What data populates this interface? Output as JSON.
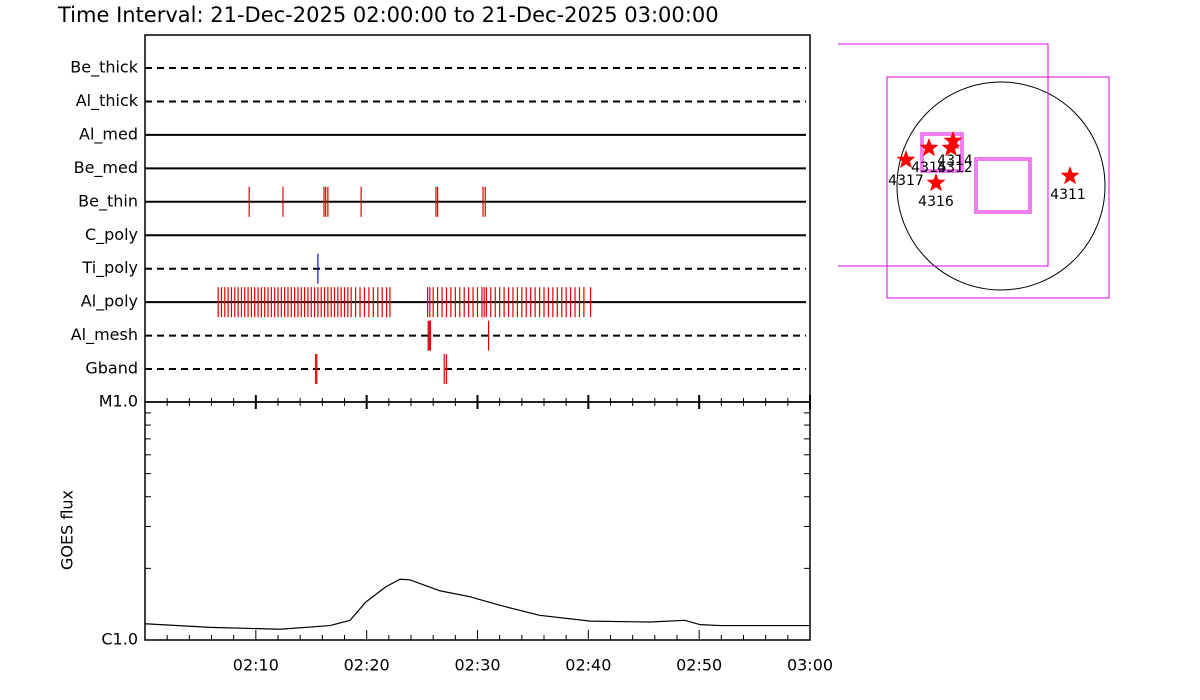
{
  "chart_data": [
    {
      "type": "timeline",
      "title": "Time Interval: 21-Dec-2025 02:00:00 to 21-Dec-2025 03:00:00",
      "categories": [
        "Be_thick",
        "Al_thick",
        "Al_med",
        "Be_med",
        "Be_thin",
        "C_poly",
        "Ti_poly",
        "Al_poly",
        "Al_mesh",
        "Gband"
      ],
      "line_styles": [
        "dashed",
        "dashed",
        "solid",
        "solid",
        "solid",
        "solid",
        "dashed",
        "solid",
        "dashed",
        "dashed"
      ],
      "event_colors": [
        "#e00000",
        "#e00000",
        "#e00000",
        "#e00000",
        "#e00000",
        "#e00000",
        "#1010c0",
        "#e00000",
        "#e00000",
        "#e00000"
      ],
      "events": [
        [],
        [],
        [],
        [],
        [
          9.4,
          12.45,
          16.15,
          16.3,
          16.5,
          19.5,
          26.25,
          26.4,
          30.5,
          30.7
        ],
        [],
        [
          15.6
        ],
        [
          6.6,
          6.9,
          7.2,
          7.5,
          7.8,
          8.1,
          8.4,
          8.7,
          9.0,
          9.3,
          9.6,
          9.9,
          10.2,
          10.5,
          10.8,
          11.1,
          11.4,
          11.7,
          12.0,
          12.3,
          12.6,
          12.9,
          13.2,
          13.5,
          13.8,
          14.1,
          14.4,
          14.7,
          15.0,
          15.3,
          15.6,
          15.9,
          16.2,
          16.5,
          16.8,
          17.1,
          17.4,
          17.7,
          18.0,
          18.3,
          18.6,
          19.0,
          19.4,
          19.8,
          20.2,
          20.6,
          21.0,
          21.4,
          21.8,
          22.1,
          25.5,
          25.7,
          26.0,
          26.4,
          26.8,
          27.2,
          27.6,
          28.0,
          28.4,
          28.8,
          29.2,
          29.6,
          30.0,
          30.4,
          30.6,
          30.8,
          31.2,
          31.6,
          32.0,
          32.4,
          32.8,
          33.2,
          33.6,
          34.0,
          34.4,
          34.8,
          35.2,
          35.6,
          36.0,
          36.4,
          36.8,
          37.2,
          37.6,
          38.0,
          38.4,
          38.8,
          39.2,
          39.6,
          40.2
        ],
        [
          25.55,
          25.65,
          25.75,
          31.0
        ],
        [
          15.4,
          15.5,
          27.0,
          27.2
        ]
      ],
      "xlim": [
        0,
        60
      ]
    },
    {
      "type": "line",
      "ylabel": "GOES flux",
      "x": [
        0,
        5.9,
        12.2,
        16.7,
        18.5,
        19.9,
        21.7,
        23.0,
        23.9,
        26.6,
        29.3,
        32.0,
        35.6,
        40.2,
        45.6,
        48.7,
        50.1,
        51.9,
        60
      ],
      "values": [
        1.17e-06,
        1.13e-06,
        1.11e-06,
        1.15e-06,
        1.21e-06,
        1.44e-06,
        1.67e-06,
        1.8e-06,
        1.79e-06,
        1.61e-06,
        1.52e-06,
        1.4e-06,
        1.27e-06,
        1.2e-06,
        1.19e-06,
        1.21e-06,
        1.16e-06,
        1.15e-06,
        1.15e-06
      ],
      "color": "#000000",
      "log_scale": true,
      "xlim": [
        0,
        60
      ],
      "xticks": [
        {
          "value": 10,
          "label": "02:10"
        },
        {
          "value": 20,
          "label": "02:20"
        },
        {
          "value": 30,
          "label": "02:30"
        },
        {
          "value": 40,
          "label": "02:40"
        },
        {
          "value": 50,
          "label": "02:50"
        },
        {
          "value": 60,
          "label": "03:00"
        }
      ],
      "minor_xticks": [
        2,
        4,
        6,
        8,
        12,
        14,
        16,
        18,
        22,
        24,
        26,
        28,
        32,
        34,
        36,
        38,
        42,
        44,
        46,
        48,
        52,
        54,
        56,
        58
      ],
      "ylim": [
        1e-06,
        1e-05
      ],
      "yticks": [
        {
          "value": 1e-06,
          "label": "C1.0"
        },
        {
          "value": 1e-05,
          "label": "M1.0"
        }
      ],
      "minor_yticks": [
        2e-06,
        3e-06,
        4e-06,
        5e-06,
        6e-06,
        7e-06,
        8e-06,
        9e-06
      ]
    }
  ],
  "sun_map": {
    "active_regions": [
      "4317",
      "4315",
      "4312",
      "4314",
      "4316",
      "4311"
    ],
    "star_color": "#ff0000"
  }
}
